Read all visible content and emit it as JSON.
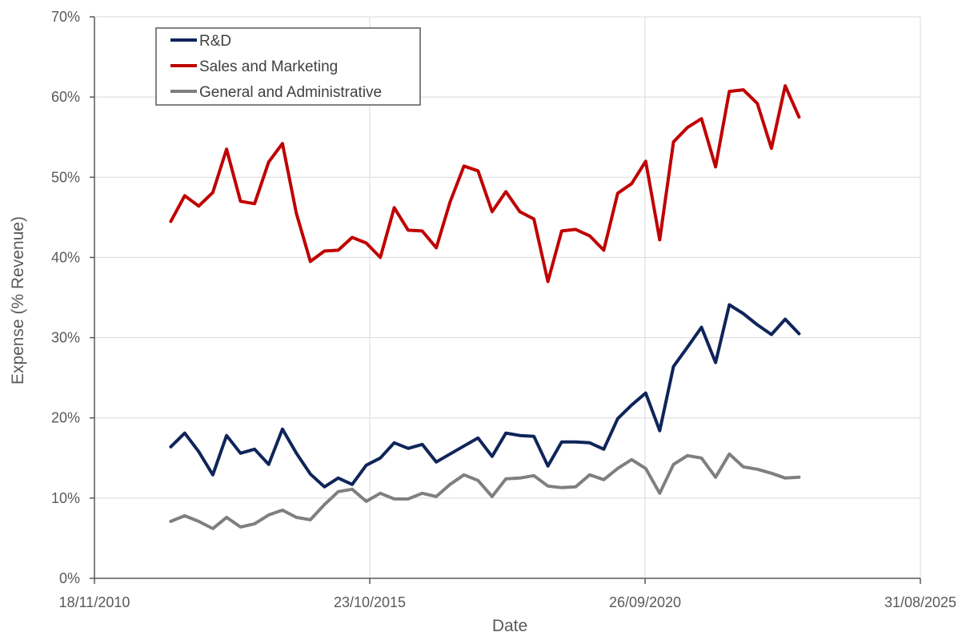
{
  "chart_data": {
    "type": "line",
    "xlabel": "Date",
    "ylabel": "Expense (% Revenue)",
    "xlim": [
      "2010-11-18",
      "2025-08-31"
    ],
    "x_ticks": [
      "18/11/2010",
      "23/10/2015",
      "26/09/2020",
      "31/08/2025"
    ],
    "ylim": [
      0,
      70
    ],
    "y_ticks": [
      "0%",
      "10%",
      "20%",
      "30%",
      "40%",
      "50%",
      "60%",
      "70%"
    ],
    "grid": true,
    "legend_position": "top-left",
    "x": [
      "2012-03-31",
      "2012-06-30",
      "2012-09-30",
      "2012-12-31",
      "2013-03-31",
      "2013-06-30",
      "2013-09-30",
      "2013-12-31",
      "2014-03-31",
      "2014-06-30",
      "2014-09-30",
      "2014-12-31",
      "2015-03-31",
      "2015-06-30",
      "2015-09-30",
      "2015-12-31",
      "2016-03-31",
      "2016-06-30",
      "2016-09-30",
      "2016-12-31",
      "2017-03-31",
      "2017-06-30",
      "2017-09-30",
      "2017-12-31",
      "2018-03-31",
      "2018-06-30",
      "2018-09-30",
      "2018-12-31",
      "2019-03-31",
      "2019-06-30",
      "2019-09-30",
      "2019-12-31",
      "2020-03-31",
      "2020-06-30",
      "2020-09-30",
      "2020-12-31",
      "2021-03-31",
      "2021-06-30",
      "2021-09-30",
      "2021-12-31",
      "2022-03-31",
      "2022-06-30",
      "2022-09-30",
      "2022-12-31",
      "2023-03-31",
      "2023-06-30",
      "2023-09-30"
    ],
    "series": [
      {
        "name": "R&D",
        "color": "#0e2559",
        "values": [
          16.4,
          18.1,
          15.8,
          12.9,
          17.8,
          15.6,
          16.1,
          14.2,
          18.6,
          15.6,
          13.0,
          11.4,
          12.5,
          11.7,
          14.1,
          15.0,
          16.9,
          16.2,
          16.7,
          14.5,
          15.5,
          16.5,
          17.5,
          15.2,
          18.1,
          17.8,
          17.7,
          14.0,
          17.0,
          17.0,
          16.9,
          16.1,
          19.9,
          21.6,
          23.1,
          18.4,
          26.4,
          28.8,
          31.3,
          26.9,
          34.1,
          33.0,
          31.6,
          30.4,
          32.3,
          30.5,
          null
        ]
      },
      {
        "name": "Sales and Marketing",
        "color": "#c00000",
        "values": [
          44.5,
          47.7,
          46.4,
          48.1,
          53.5,
          47.0,
          46.7,
          51.9,
          54.2,
          45.5,
          39.5,
          40.8,
          40.9,
          42.5,
          41.8,
          40.0,
          46.2,
          43.4,
          43.3,
          41.2,
          46.9,
          51.4,
          50.8,
          45.7,
          48.2,
          45.7,
          44.8,
          37.0,
          43.3,
          43.5,
          42.7,
          40.9,
          48.0,
          49.2,
          52.0,
          42.2,
          54.4,
          56.2,
          57.3,
          51.3,
          60.7,
          60.9,
          59.2,
          53.6,
          61.4,
          57.5,
          null
        ]
      },
      {
        "name": "General and Administrative",
        "color": "#7f7f7f",
        "values": [
          7.1,
          7.8,
          7.1,
          6.2,
          7.6,
          6.4,
          6.8,
          7.9,
          8.5,
          7.6,
          7.3,
          9.2,
          10.8,
          11.1,
          9.6,
          10.6,
          9.9,
          9.9,
          10.6,
          10.2,
          11.7,
          12.9,
          12.2,
          10.2,
          12.4,
          12.5,
          12.8,
          11.5,
          11.3,
          11.4,
          12.9,
          12.3,
          13.7,
          14.8,
          13.7,
          10.6,
          14.2,
          15.3,
          15.0,
          12.6,
          15.5,
          13.9,
          13.6,
          13.1,
          12.5,
          12.6,
          null
        ]
      }
    ]
  }
}
